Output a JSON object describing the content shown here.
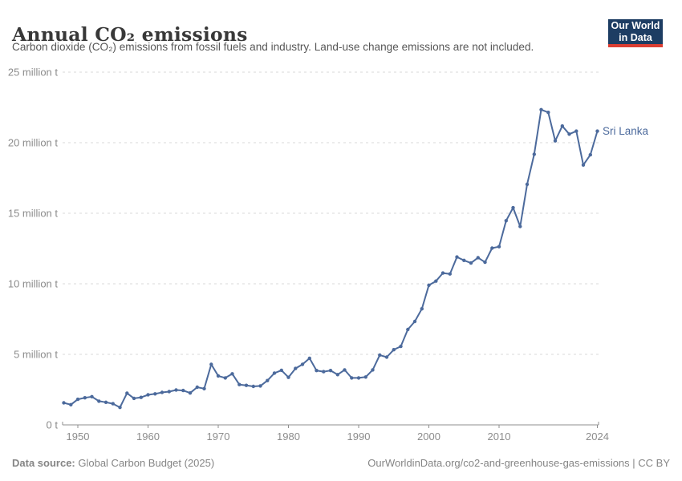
{
  "header": {
    "title": "Annual CO₂ emissions",
    "subtitle": "Carbon dioxide (CO₂) emissions from fossil fuels and industry. Land-use change emissions are not included."
  },
  "logo": {
    "line1": "Our World",
    "line2": "in Data",
    "bg_color": "#1d3d63",
    "accent_color": "#dc3e32"
  },
  "chart_data": {
    "type": "line",
    "title": "Annual CO₂ emissions",
    "entity": "Sri Lanka",
    "unit": "million tonnes",
    "x": [
      1948,
      1949,
      1950,
      1951,
      1952,
      1953,
      1954,
      1955,
      1956,
      1957,
      1958,
      1959,
      1960,
      1961,
      1962,
      1963,
      1964,
      1965,
      1966,
      1967,
      1968,
      1969,
      1970,
      1971,
      1972,
      1973,
      1974,
      1975,
      1976,
      1977,
      1978,
      1979,
      1980,
      1981,
      1982,
      1983,
      1984,
      1985,
      1986,
      1987,
      1988,
      1989,
      1990,
      1991,
      1992,
      1993,
      1994,
      1995,
      1996,
      1997,
      1998,
      1999,
      2000,
      2001,
      2002,
      2003,
      2004,
      2005,
      2006,
      2007,
      2008,
      2009,
      2010,
      2011,
      2012,
      2013,
      2014,
      2015,
      2016,
      2017,
      2018,
      2019,
      2020,
      2021,
      2022,
      2023,
      2024
    ],
    "values": [
      1.56,
      1.43,
      1.81,
      1.92,
      2.0,
      1.68,
      1.6,
      1.5,
      1.24,
      2.25,
      1.88,
      1.95,
      2.13,
      2.2,
      2.3,
      2.36,
      2.47,
      2.44,
      2.26,
      2.67,
      2.57,
      4.29,
      3.47,
      3.33,
      3.62,
      2.86,
      2.8,
      2.73,
      2.76,
      3.14,
      3.67,
      3.87,
      3.37,
      4.0,
      4.29,
      4.72,
      3.85,
      3.77,
      3.85,
      3.56,
      3.9,
      3.33,
      3.33,
      3.39,
      3.9,
      4.95,
      4.8,
      5.33,
      5.56,
      6.76,
      7.33,
      8.23,
      9.9,
      10.19,
      10.76,
      10.7,
      11.9,
      11.66,
      11.47,
      11.85,
      11.53,
      12.53,
      12.63,
      14.47,
      15.39,
      14.06,
      17.05,
      19.18,
      22.34,
      22.15,
      20.13,
      21.18,
      20.61,
      20.82,
      18.42,
      19.14,
      20.82
    ],
    "ylim": [
      0,
      25
    ],
    "grid": true,
    "y_ticks": [
      {
        "value": 0,
        "label": "0 t"
      },
      {
        "value": 5,
        "label": "5 million t"
      },
      {
        "value": 10,
        "label": "10 million t"
      },
      {
        "value": 15,
        "label": "15 million t"
      },
      {
        "value": 20,
        "label": "20 million t"
      },
      {
        "value": 25,
        "label": "25 million t"
      }
    ],
    "x_ticks": [
      {
        "year": 1950,
        "label": "1950"
      },
      {
        "year": 1960,
        "label": "1960"
      },
      {
        "year": 1970,
        "label": "1970"
      },
      {
        "year": 1980,
        "label": "1980"
      },
      {
        "year": 1990,
        "label": "1990"
      },
      {
        "year": 2000,
        "label": "2000"
      },
      {
        "year": 2010,
        "label": "2010"
      },
      {
        "year": 2024,
        "label": "2024"
      }
    ],
    "colors": {
      "line": "#4c6a9c",
      "entity_label": "#4c6a9c",
      "grid": "#d9d9d9",
      "axis": "#8f8f8f",
      "tick_label": "#8c8c8c"
    }
  },
  "footer": {
    "source_label": "Data source:",
    "source_text": " Global Carbon Budget (2025)",
    "right_text": "OurWorldinData.org/co2-and-greenhouse-gas-emissions | CC BY"
  }
}
